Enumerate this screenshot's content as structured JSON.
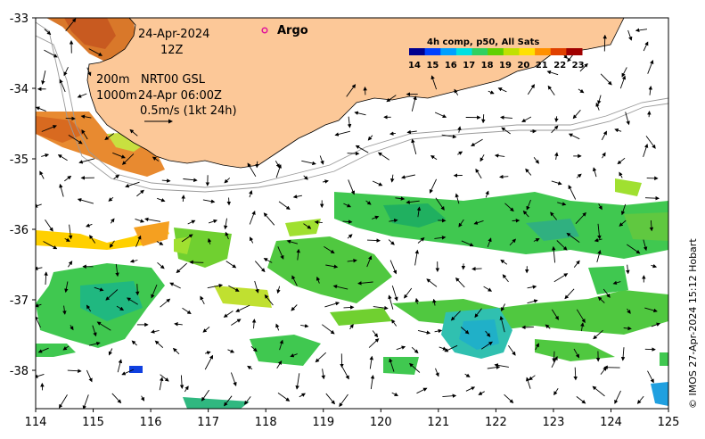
{
  "map": {
    "land_color": "#fcc898",
    "annotations": {
      "date": "24-Apr-2024",
      "hour": "12Z",
      "argo_label": "Argo",
      "argo_color": "#e0149a",
      "depth_200": "200m",
      "depth_1000": "1000m",
      "product": "NRT00 GSL",
      "product_time": "24-Apr 06:00Z",
      "scale_label": "0.5m/s (1kt 24h)"
    },
    "colorbar": {
      "title": "4h comp, p50, All Sats",
      "ticks": [
        "14",
        "15",
        "16",
        "17",
        "18",
        "19",
        "20",
        "21",
        "22",
        "23"
      ],
      "colors": [
        "#00008f",
        "#0040ff",
        "#00a0ff",
        "#00e0e0",
        "#30d060",
        "#60d000",
        "#c0e000",
        "#ffe000",
        "#ff9000",
        "#e04000",
        "#a00000"
      ]
    },
    "credit": "© IMOS 27-Apr-2024 15:12 Hobart",
    "x_ticks": [
      "114",
      "115",
      "116",
      "117",
      "118",
      "119",
      "120",
      "121",
      "122",
      "123",
      "124",
      "125"
    ],
    "y_ticks": [
      "-33",
      "-34",
      "-35",
      "-36",
      "-37",
      "-38"
    ]
  }
}
